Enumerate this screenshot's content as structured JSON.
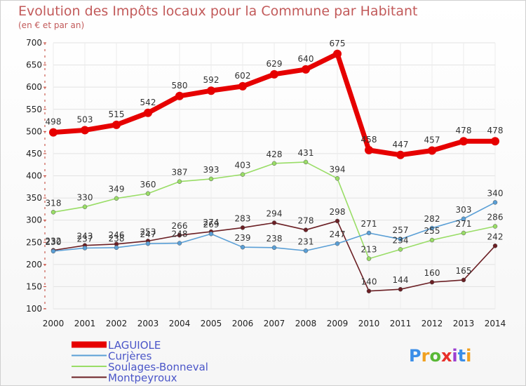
{
  "chart_data": {
    "type": "line",
    "title": "Evolution des Impôts locaux pour la Commune par Habitant",
    "subtitle": "(en € et par an)",
    "x": [
      "2000",
      "2001",
      "2002",
      "2003",
      "2004",
      "2005",
      "2006",
      "2007",
      "2008",
      "2009",
      "2010",
      "2011",
      "2012",
      "2013",
      "2014"
    ],
    "ylim": [
      100,
      700
    ],
    "yticks": [
      100,
      150,
      200,
      250,
      300,
      350,
      400,
      450,
      500,
      550,
      600,
      650,
      700
    ],
    "grid": true,
    "series": [
      {
        "name": "LAGUIOLE",
        "color": "#e60000",
        "values": [
          498,
          503,
          515,
          542,
          580,
          592,
          602,
          629,
          640,
          675,
          458,
          447,
          457,
          478,
          478
        ]
      },
      {
        "name": "Curjères",
        "color": "#5a9fd6",
        "values": [
          230,
          237,
          238,
          247,
          248,
          269,
          239,
          238,
          231,
          247,
          271,
          257,
          282,
          303,
          340
        ]
      },
      {
        "name": "Soulages-Bonneval",
        "color": "#99dd66",
        "values": [
          318,
          330,
          349,
          360,
          387,
          393,
          403,
          428,
          431,
          394,
          213,
          234,
          255,
          271,
          286
        ]
      },
      {
        "name": "Montpeyroux",
        "color": "#6b1f24",
        "values": [
          232,
          243,
          246,
          253,
          266,
          274,
          283,
          294,
          278,
          298,
          140,
          144,
          160,
          165,
          242
        ]
      }
    ],
    "legend_position": "bottom-left"
  },
  "brand": {
    "text": "Proxiti",
    "colors": [
      "#3b8ee8",
      "#f0a020",
      "#59b836",
      "#e8302a",
      "#9c3fd1",
      "#3b8ee8",
      "#f0a020"
    ]
  }
}
